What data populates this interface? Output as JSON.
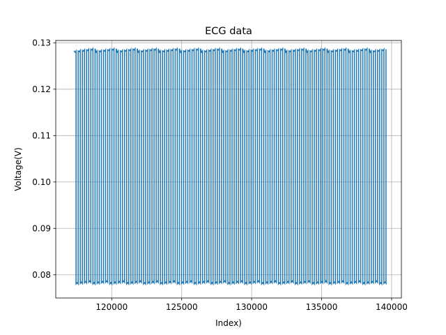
{
  "chart_data": {
    "type": "line",
    "title": "ECG data",
    "xlabel": "Index)",
    "ylabel": "Voltage(V)",
    "xlim": [
      116000,
      140700
    ],
    "ylim": [
      0.075,
      0.1305
    ],
    "grid": true,
    "legend": "none",
    "x_ticks": [
      120000,
      125000,
      130000,
      135000,
      140000
    ],
    "x_tick_labels": [
      "120000",
      "125000",
      "130000",
      "135000",
      "140000"
    ],
    "y_ticks": [
      0.08,
      0.09,
      0.1,
      0.11,
      0.12,
      0.13
    ],
    "y_tick_labels": [
      "0.08",
      "0.09",
      "0.10",
      "0.11",
      "0.12",
      "0.13"
    ],
    "series": [
      {
        "color": "#1f77b4",
        "x_start": 117300,
        "x_end": 139600,
        "y_high": 0.1285,
        "y_low": 0.0782,
        "cycles": 74,
        "description_of_signal": "square-wave oscillation between about 0.078 V and 0.129 V"
      }
    ]
  }
}
